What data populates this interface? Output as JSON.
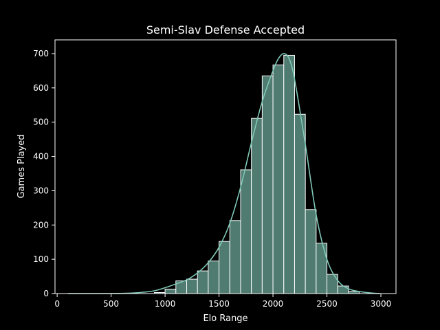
{
  "chart_data": {
    "type": "bar",
    "title": "Semi-Slav Defense Accepted",
    "xlabel": "Elo Range",
    "ylabel": "Games Played",
    "xlim": [
      -20,
      3140
    ],
    "ylim": [
      0,
      740
    ],
    "xticks": [
      0,
      500,
      1000,
      1500,
      2000,
      2500,
      3000
    ],
    "yticks": [
      0,
      100,
      200,
      300,
      400,
      500,
      600,
      700
    ],
    "grid": false,
    "legend": "none",
    "bin_width": 100,
    "bins": [
      {
        "x0": 900,
        "x1": 1000,
        "value": 3
      },
      {
        "x0": 1000,
        "x1": 1100,
        "value": 13
      },
      {
        "x0": 1100,
        "x1": 1200,
        "value": 37
      },
      {
        "x0": 1200,
        "x1": 1300,
        "value": 42
      },
      {
        "x0": 1300,
        "x1": 1400,
        "value": 66
      },
      {
        "x0": 1400,
        "x1": 1500,
        "value": 95
      },
      {
        "x0": 1500,
        "x1": 1600,
        "value": 152
      },
      {
        "x0": 1600,
        "x1": 1700,
        "value": 213
      },
      {
        "x0": 1700,
        "x1": 1800,
        "value": 361
      },
      {
        "x0": 1800,
        "x1": 1900,
        "value": 511
      },
      {
        "x0": 1900,
        "x1": 2000,
        "value": 635
      },
      {
        "x0": 2000,
        "x1": 2100,
        "value": 667
      },
      {
        "x0": 2100,
        "x1": 2200,
        "value": 695
      },
      {
        "x0": 2200,
        "x1": 2300,
        "value": 523
      },
      {
        "x0": 2300,
        "x1": 2400,
        "value": 245
      },
      {
        "x0": 2400,
        "x1": 2500,
        "value": 147
      },
      {
        "x0": 2500,
        "x1": 2600,
        "value": 56
      },
      {
        "x0": 2600,
        "x1": 2700,
        "value": 22
      },
      {
        "x0": 2700,
        "x1": 2800,
        "value": 6
      }
    ],
    "kde": {
      "x": [
        100,
        500,
        650,
        800,
        900,
        1000,
        1100,
        1200,
        1300,
        1400,
        1500,
        1600,
        1700,
        1800,
        1900,
        2000,
        2050,
        2100,
        2150,
        2200,
        2300,
        2400,
        2500,
        2600,
        2700,
        2800,
        2900,
        2990
      ],
      "y": [
        0,
        0,
        1,
        4,
        8,
        17,
        28,
        40,
        60,
        90,
        135,
        205,
        310,
        440,
        560,
        650,
        685,
        700,
        685,
        625,
        435,
        230,
        100,
        38,
        14,
        6,
        2,
        0
      ]
    },
    "colors": {
      "bar_fill": "#4f7b70",
      "bar_edge": "#ffffff",
      "kde_line": "#7fc8b6",
      "axes": "#ffffff",
      "background": "#000000"
    }
  }
}
